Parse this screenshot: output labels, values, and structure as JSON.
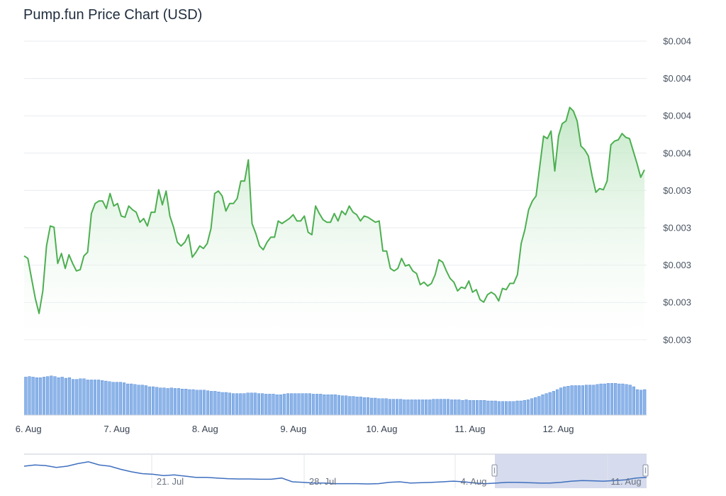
{
  "chart_data": {
    "type": "area",
    "title": "Pump.fun Price Chart (USD)",
    "y_tick_labels": [
      "$0.004",
      "$0.004",
      "$0.004",
      "$0.004",
      "$0.003",
      "$0.003",
      "$0.003",
      "$0.003",
      "$0.003"
    ],
    "x_tick_labels": [
      "6. Aug",
      "7. Aug",
      "8. Aug",
      "9. Aug",
      "10. Aug",
      "11. Aug",
      "12. Aug"
    ],
    "x_tick_days": [
      6,
      7,
      8,
      9,
      10,
      11,
      12
    ],
    "x_domain_days": [
      5.95,
      13.0
    ],
    "ylim": [
      0.003,
      0.0042
    ],
    "grid": true,
    "legend": "none",
    "colors": {
      "line": "#4caf50",
      "fill_top": "#b9e4bd",
      "volume": "#8db4e8",
      "volume_edge": "#3f7fd6",
      "navigator_line": "#3f6fbf",
      "navigator_mask": "#cfd6ea"
    },
    "series": [
      {
        "values": [
          0.00334,
          0.00333,
          0.00325,
          0.00317,
          0.00311,
          0.0032,
          0.00338,
          0.00346,
          0.003455,
          0.00331,
          0.00335,
          0.00329,
          0.003345,
          0.00331,
          0.00328,
          0.003285,
          0.00334,
          0.003355,
          0.00351,
          0.00355,
          0.00356,
          0.00356,
          0.00353,
          0.00359,
          0.00354,
          0.00355,
          0.0035,
          0.003495,
          0.00354,
          0.003525,
          0.003515,
          0.003475,
          0.00349,
          0.00346,
          0.003515,
          0.003515,
          0.003605,
          0.003545,
          0.0036,
          0.0035,
          0.003455,
          0.003395,
          0.00338,
          0.003395,
          0.003425,
          0.003335,
          0.003355,
          0.00338,
          0.00337,
          0.00339,
          0.00345,
          0.00359,
          0.0036,
          0.00358,
          0.00352,
          0.00355,
          0.00355,
          0.00357,
          0.00364,
          0.00364,
          0.003725,
          0.00347,
          0.00343,
          0.00338,
          0.003365,
          0.003395,
          0.003415,
          0.003415,
          0.00348,
          0.00347,
          0.00348,
          0.00349,
          0.003505,
          0.00348,
          0.00348,
          0.0035,
          0.003435,
          0.003425,
          0.00354,
          0.00351,
          0.003485,
          0.003475,
          0.003475,
          0.00351,
          0.00348,
          0.00352,
          0.003505,
          0.00354,
          0.003515,
          0.003505,
          0.00348,
          0.0035,
          0.003495,
          0.003485,
          0.003475,
          0.00348,
          0.00336,
          0.00336,
          0.00329,
          0.00328,
          0.00329,
          0.00333,
          0.0033,
          0.003305,
          0.00328,
          0.00327,
          0.003225,
          0.003235,
          0.00322,
          0.00323,
          0.003265,
          0.003325,
          0.003315,
          0.00328,
          0.00325,
          0.003235,
          0.0032,
          0.003215,
          0.00321,
          0.00324,
          0.003195,
          0.003205,
          0.003165,
          0.003155,
          0.003185,
          0.003195,
          0.003185,
          0.00316,
          0.00321,
          0.003205,
          0.00323,
          0.00323,
          0.003265,
          0.00339,
          0.003445,
          0.003525,
          0.00356,
          0.00358,
          0.0037,
          0.00382,
          0.00381,
          0.00384,
          0.00368,
          0.00382,
          0.00387,
          0.00388,
          0.003935,
          0.00392,
          0.00388,
          0.00378,
          0.003765,
          0.00374,
          0.00366,
          0.003595,
          0.00361,
          0.003605,
          0.00364,
          0.003785,
          0.0038,
          0.003805,
          0.00383,
          0.003815,
          0.00381,
          0.00376,
          0.00371,
          0.003655,
          0.003685
        ]
      }
    ],
    "volume": {
      "values": [
        0.67,
        0.68,
        0.67,
        0.66,
        0.66,
        0.67,
        0.68,
        0.69,
        0.68,
        0.66,
        0.67,
        0.65,
        0.66,
        0.63,
        0.63,
        0.64,
        0.64,
        0.62,
        0.62,
        0.62,
        0.62,
        0.61,
        0.6,
        0.59,
        0.58,
        0.58,
        0.58,
        0.57,
        0.55,
        0.55,
        0.54,
        0.53,
        0.53,
        0.52,
        0.5,
        0.5,
        0.49,
        0.48,
        0.48,
        0.47,
        0.48,
        0.47,
        0.47,
        0.46,
        0.46,
        0.45,
        0.45,
        0.44,
        0.44,
        0.44,
        0.43,
        0.42,
        0.42,
        0.41,
        0.4,
        0.4,
        0.39,
        0.38,
        0.38,
        0.38,
        0.38,
        0.39,
        0.39,
        0.39,
        0.38,
        0.38,
        0.37,
        0.37,
        0.37,
        0.36,
        0.36,
        0.37,
        0.38,
        0.38,
        0.38,
        0.38,
        0.38,
        0.38,
        0.38,
        0.37,
        0.37,
        0.37,
        0.36,
        0.36,
        0.36,
        0.36,
        0.35,
        0.34,
        0.34,
        0.33,
        0.33,
        0.32,
        0.32,
        0.31,
        0.31,
        0.3,
        0.3,
        0.29,
        0.29,
        0.29,
        0.28,
        0.28,
        0.28,
        0.28,
        0.27,
        0.27,
        0.27,
        0.27,
        0.27,
        0.27,
        0.27,
        0.27,
        0.28,
        0.28,
        0.28,
        0.28,
        0.28,
        0.27,
        0.27,
        0.27,
        0.26,
        0.27,
        0.26,
        0.26,
        0.26,
        0.26,
        0.26,
        0.25,
        0.25,
        0.25,
        0.24,
        0.24,
        0.24,
        0.24,
        0.24,
        0.25,
        0.25,
        0.26,
        0.27,
        0.29,
        0.31,
        0.33,
        0.36,
        0.38,
        0.4,
        0.42,
        0.45,
        0.48,
        0.5,
        0.51,
        0.52,
        0.52,
        0.52,
        0.52,
        0.53,
        0.53,
        0.53,
        0.54,
        0.55,
        0.55,
        0.56,
        0.56,
        0.56,
        0.55,
        0.55,
        0.54,
        0.53,
        0.5,
        0.45,
        0.44,
        0.45
      ]
    },
    "navigator": {
      "tick_labels": [
        "21. Jul",
        "28. Jul",
        "4. Aug",
        "11. Aug"
      ],
      "values": [
        0.66,
        0.7,
        0.68,
        0.62,
        0.66,
        0.74,
        0.8,
        0.7,
        0.66,
        0.56,
        0.48,
        0.42,
        0.4,
        0.36,
        0.38,
        0.34,
        0.3,
        0.3,
        0.28,
        0.26,
        0.25,
        0.25,
        0.24,
        0.24,
        0.28,
        0.16,
        0.14,
        0.12,
        0.12,
        0.1,
        0.1,
        0.1,
        0.09,
        0.1,
        0.14,
        0.16,
        0.12,
        0.13,
        0.14,
        0.16,
        0.18,
        0.16,
        0.12,
        0.1,
        0.12,
        0.14,
        0.14,
        0.13,
        0.12,
        0.12,
        0.14,
        0.18,
        0.2,
        0.19,
        0.18,
        0.2,
        0.22,
        0.28,
        0.3
      ]
    }
  }
}
